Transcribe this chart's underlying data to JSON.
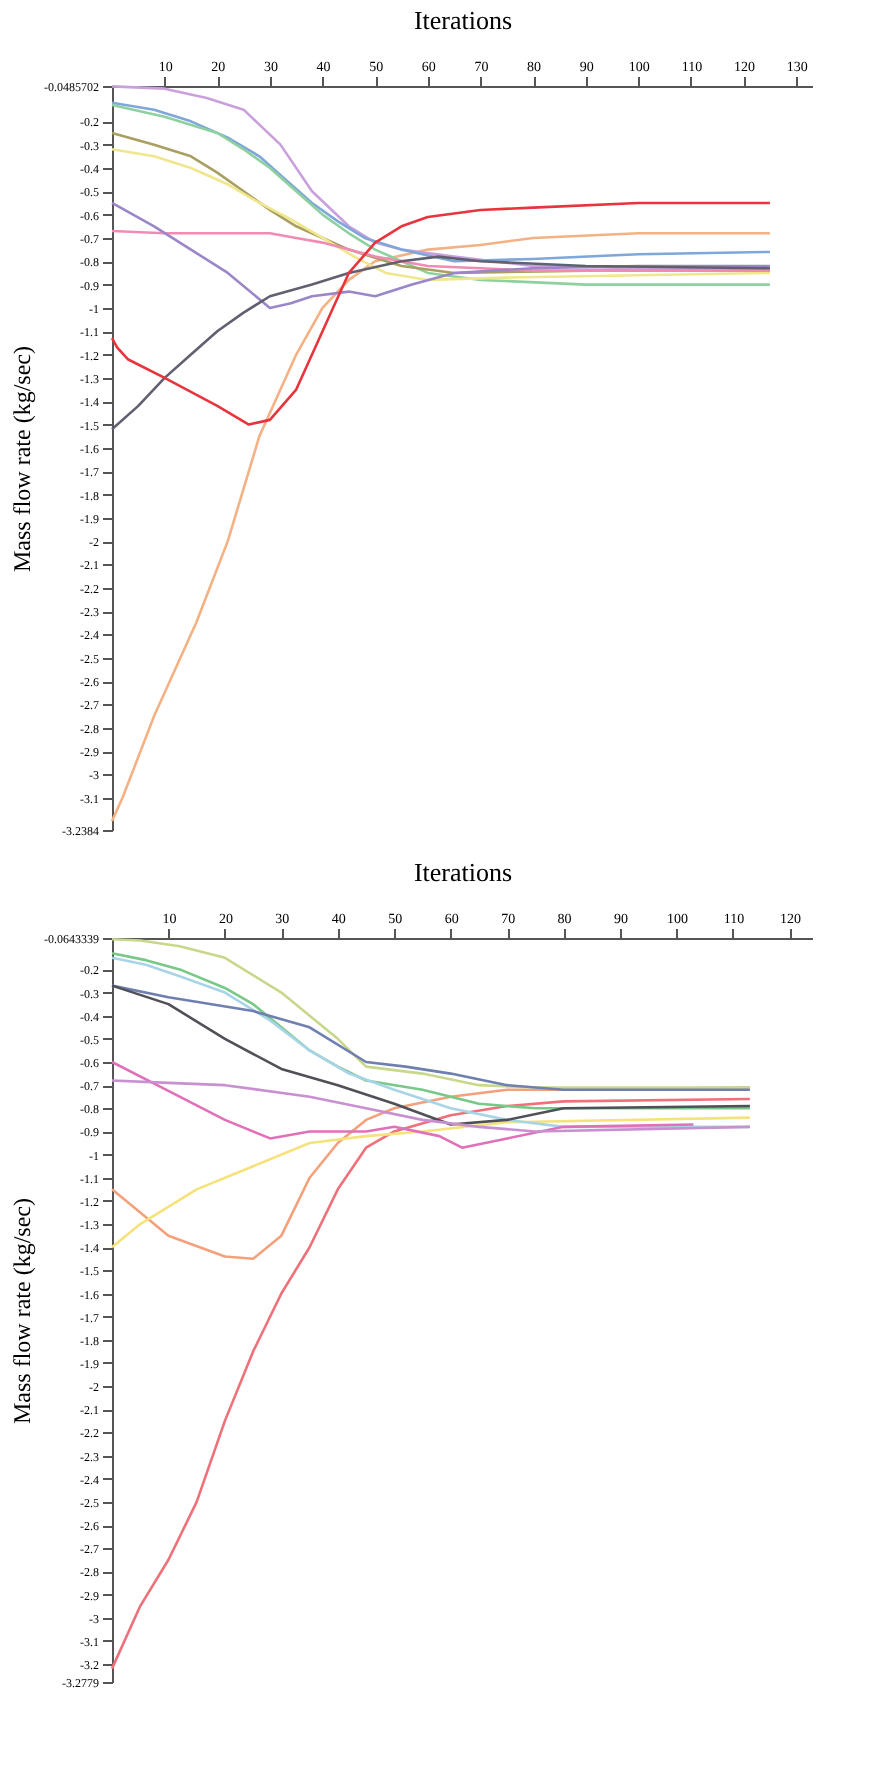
{
  "chart_data": [
    {
      "type": "line",
      "xlabel": "Iterations",
      "ylabel": "Mass flow rate (kg/sec)",
      "xlim": [
        0,
        133
      ],
      "ylim": [
        -3.2384,
        -0.0485702
      ],
      "xticks": [
        10,
        20,
        30,
        40,
        50,
        60,
        70,
        80,
        90,
        100,
        110,
        120,
        130
      ],
      "yticks": [
        -0.0485702,
        -0.2,
        -0.3,
        -0.4,
        -0.5,
        -0.6,
        -0.7,
        -0.8,
        -0.9,
        -1,
        -1.1,
        -1.2,
        -1.3,
        -1.4,
        -1.5,
        -1.6,
        -1.7,
        -1.8,
        -1.9,
        -2,
        -2.1,
        -2.2,
        -2.3,
        -2.4,
        -2.5,
        -2.6,
        -2.7,
        -2.8,
        -2.9,
        -3,
        -3.1,
        -3.2384
      ],
      "grid": false,
      "legend": false,
      "marker": "none",
      "line_style": "solid",
      "series": [
        {
          "color": "#f4b183",
          "x": [
            0,
            2,
            8,
            16,
            22,
            28,
            35,
            40,
            45,
            50,
            60,
            70,
            80,
            100,
            125
          ],
          "values": [
            -3.2,
            -3.1,
            -2.75,
            -2.35,
            -2.0,
            -1.55,
            -1.2,
            -1.0,
            -0.88,
            -0.8,
            -0.75,
            -0.73,
            -0.7,
            -0.68,
            -0.68
          ]
        },
        {
          "color": "#c9a0dc",
          "x": [
            0,
            10,
            18,
            25,
            32,
            38,
            45,
            50,
            55,
            65,
            80,
            100,
            125
          ],
          "values": [
            -0.05,
            -0.06,
            -0.1,
            -0.15,
            -0.3,
            -0.5,
            -0.65,
            -0.72,
            -0.75,
            -0.78,
            -0.82,
            -0.83,
            -0.83
          ]
        },
        {
          "color": "#7fa7d9",
          "x": [
            0,
            8,
            15,
            22,
            28,
            33,
            38,
            43,
            48,
            55,
            65,
            80,
            100,
            125
          ],
          "values": [
            -0.12,
            -0.15,
            -0.2,
            -0.27,
            -0.35,
            -0.45,
            -0.55,
            -0.63,
            -0.7,
            -0.75,
            -0.8,
            -0.79,
            -0.77,
            -0.76
          ]
        },
        {
          "color": "#8fd19e",
          "x": [
            0,
            10,
            20,
            25,
            30,
            35,
            40,
            45,
            50,
            55,
            60,
            70,
            90,
            125
          ],
          "values": [
            -0.13,
            -0.18,
            -0.25,
            -0.32,
            -0.4,
            -0.5,
            -0.6,
            -0.68,
            -0.75,
            -0.8,
            -0.85,
            -0.88,
            -0.9,
            -0.9
          ]
        },
        {
          "color": "#a8a060",
          "x": [
            0,
            8,
            15,
            20,
            25,
            30,
            35,
            40,
            45,
            55,
            65,
            90,
            125
          ],
          "values": [
            -0.25,
            -0.3,
            -0.35,
            -0.42,
            -0.5,
            -0.58,
            -0.65,
            -0.7,
            -0.75,
            -0.82,
            -0.85,
            -0.84,
            -0.84
          ]
        },
        {
          "color": "#f0e68c",
          "x": [
            0,
            8,
            15,
            22,
            28,
            34,
            40,
            46,
            52,
            60,
            75,
            100,
            125
          ],
          "values": [
            -0.32,
            -0.35,
            -0.4,
            -0.47,
            -0.55,
            -0.62,
            -0.7,
            -0.78,
            -0.85,
            -0.88,
            -0.87,
            -0.86,
            -0.85
          ]
        },
        {
          "color": "#f08cb4",
          "x": [
            0,
            10,
            20,
            30,
            35,
            40,
            45,
            50,
            55,
            60,
            80,
            100,
            125
          ],
          "values": [
            -0.67,
            -0.68,
            -0.68,
            -0.68,
            -0.7,
            -0.72,
            -0.75,
            -0.78,
            -0.8,
            -0.82,
            -0.84,
            -0.84,
            -0.84
          ]
        },
        {
          "color": "#9a86c8",
          "x": [
            0,
            4,
            8,
            15,
            22,
            30,
            34,
            38,
            45,
            50,
            57,
            65,
            80,
            100,
            125
          ],
          "values": [
            -0.55,
            -0.6,
            -0.65,
            -0.75,
            -0.85,
            -1.0,
            -0.98,
            -0.95,
            -0.93,
            -0.95,
            -0.9,
            -0.85,
            -0.83,
            -0.82,
            -0.82
          ]
        },
        {
          "color": "#606070",
          "x": [
            0,
            5,
            10,
            15,
            20,
            25,
            30,
            38,
            45,
            55,
            62,
            70,
            90,
            125
          ],
          "values": [
            -1.52,
            -1.42,
            -1.3,
            -1.2,
            -1.1,
            -1.02,
            -0.95,
            -0.9,
            -0.85,
            -0.8,
            -0.78,
            -0.8,
            -0.82,
            -0.83
          ]
        },
        {
          "color": "#e8343c",
          "x": [
            0,
            1,
            3,
            10,
            20,
            26,
            30,
            35,
            40,
            45,
            50,
            55,
            60,
            70,
            80,
            100,
            125
          ],
          "values": [
            -1.13,
            -1.17,
            -1.22,
            -1.3,
            -1.42,
            -1.5,
            -1.48,
            -1.35,
            -1.1,
            -0.85,
            -0.72,
            -0.65,
            -0.61,
            -0.58,
            -0.57,
            -0.55,
            -0.55
          ]
        }
      ]
    },
    {
      "type": "line",
      "xlabel": "Iterations",
      "ylabel": "Mass flow rate (kg/sec)",
      "xlim": [
        0,
        124
      ],
      "ylim": [
        -3.2779,
        -0.0643339
      ],
      "xticks": [
        10,
        20,
        30,
        40,
        50,
        60,
        70,
        80,
        90,
        100,
        110,
        120
      ],
      "yticks": [
        -0.0643339,
        -0.2,
        -0.3,
        -0.4,
        -0.5,
        -0.6,
        -0.7,
        -0.8,
        -0.9,
        -1,
        -1.1,
        -1.2,
        -1.3,
        -1.4,
        -1.5,
        -1.6,
        -1.7,
        -1.8,
        -1.9,
        -2,
        -2.1,
        -2.2,
        -2.3,
        -2.4,
        -2.5,
        -2.6,
        -2.7,
        -2.8,
        -2.9,
        -3,
        -3.1,
        -3.2,
        -3.2779
      ],
      "grid": false,
      "legend": false,
      "marker": "none",
      "line_style": "solid",
      "series": [
        {
          "color": "#f0707a",
          "x": [
            0,
            5,
            10,
            15,
            20,
            25,
            30,
            35,
            40,
            45,
            50,
            60,
            70,
            80,
            113
          ],
          "values": [
            -3.22,
            -2.95,
            -2.75,
            -2.5,
            -2.15,
            -1.85,
            -1.6,
            -1.4,
            -1.15,
            -0.97,
            -0.9,
            -0.83,
            -0.79,
            -0.77,
            -0.76
          ]
        },
        {
          "color": "#f4a07a",
          "x": [
            0,
            5,
            10,
            20,
            25,
            30,
            35,
            40,
            45,
            50,
            60,
            70,
            80,
            113
          ],
          "values": [
            -1.15,
            -1.25,
            -1.35,
            -1.44,
            -1.45,
            -1.35,
            -1.1,
            -0.95,
            -0.85,
            -0.8,
            -0.75,
            -0.72,
            -0.72,
            -0.71
          ]
        },
        {
          "color": "#f5e27a",
          "x": [
            0,
            5,
            15,
            25,
            35,
            45,
            55,
            70,
            113
          ],
          "values": [
            -1.4,
            -1.3,
            -1.15,
            -1.05,
            -0.95,
            -0.92,
            -0.9,
            -0.86,
            -0.84
          ]
        },
        {
          "color": "#c8d88a",
          "x": [
            0,
            5,
            12,
            20,
            30,
            40,
            45,
            55,
            65,
            75,
            113
          ],
          "values": [
            -0.07,
            -0.075,
            -0.1,
            -0.15,
            -0.3,
            -0.5,
            -0.62,
            -0.65,
            -0.7,
            -0.71,
            -0.71
          ]
        },
        {
          "color": "#78c888",
          "x": [
            0,
            6,
            12,
            20,
            25,
            30,
            35,
            40,
            45,
            55,
            65,
            75,
            113
          ],
          "values": [
            -0.13,
            -0.16,
            -0.2,
            -0.28,
            -0.35,
            -0.45,
            -0.55,
            -0.62,
            -0.68,
            -0.72,
            -0.78,
            -0.8,
            -0.8
          ]
        },
        {
          "color": "#a8d4e8",
          "x": [
            0,
            6,
            12,
            20,
            28,
            35,
            42,
            50,
            60,
            70,
            80,
            113
          ],
          "values": [
            -0.15,
            -0.18,
            -0.23,
            -0.3,
            -0.42,
            -0.55,
            -0.65,
            -0.72,
            -0.8,
            -0.85,
            -0.88,
            -0.88
          ]
        },
        {
          "color": "#6f7fb0",
          "x": [
            0,
            10,
            25,
            35,
            45,
            52,
            60,
            70,
            80,
            113
          ],
          "values": [
            -0.27,
            -0.32,
            -0.38,
            -0.45,
            -0.6,
            -0.62,
            -0.65,
            -0.7,
            -0.72,
            -0.72
          ]
        },
        {
          "color": "#505058",
          "x": [
            0,
            10,
            20,
            30,
            40,
            50,
            60,
            70,
            80,
            113
          ],
          "values": [
            -0.27,
            -0.35,
            -0.5,
            -0.63,
            -0.7,
            -0.78,
            -0.87,
            -0.85,
            -0.8,
            -0.79
          ]
        },
        {
          "color": "#e070b8",
          "x": [
            0,
            8,
            20,
            28,
            35,
            45,
            50,
            58,
            62,
            70,
            80,
            103
          ],
          "values": [
            -0.6,
            -0.7,
            -0.85,
            -0.93,
            -0.9,
            -0.9,
            -0.88,
            -0.92,
            -0.97,
            -0.93,
            -0.88,
            -0.87
          ]
        },
        {
          "color": "#c890d0",
          "x": [
            0,
            10,
            20,
            35,
            45,
            55,
            65,
            75,
            113
          ],
          "values": [
            -0.68,
            -0.69,
            -0.7,
            -0.75,
            -0.8,
            -0.85,
            -0.88,
            -0.9,
            -0.88
          ]
        }
      ]
    }
  ]
}
